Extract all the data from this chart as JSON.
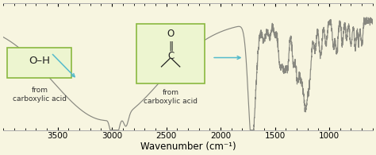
{
  "bg_color": "#f7f5e0",
  "line_color": "#888880",
  "xlabel": "Wavenumber (cm⁻¹)",
  "xlabel_fontsize": 8.5,
  "xlim": [
    4000,
    600
  ],
  "ylim": [
    0.0,
    1.05
  ],
  "xticks": [
    3500,
    3000,
    2500,
    2000,
    1500,
    1000
  ],
  "tick_fontsize": 7.5,
  "annotation_color": "#55bbcc",
  "box_edge_color": "#8ab840",
  "box_face_color": "#edf5d0",
  "oh_label": "O–H",
  "sublabel_oh": "from\ncarboxylic acid",
  "sublabel_co": "from\ncarboxylic acid"
}
